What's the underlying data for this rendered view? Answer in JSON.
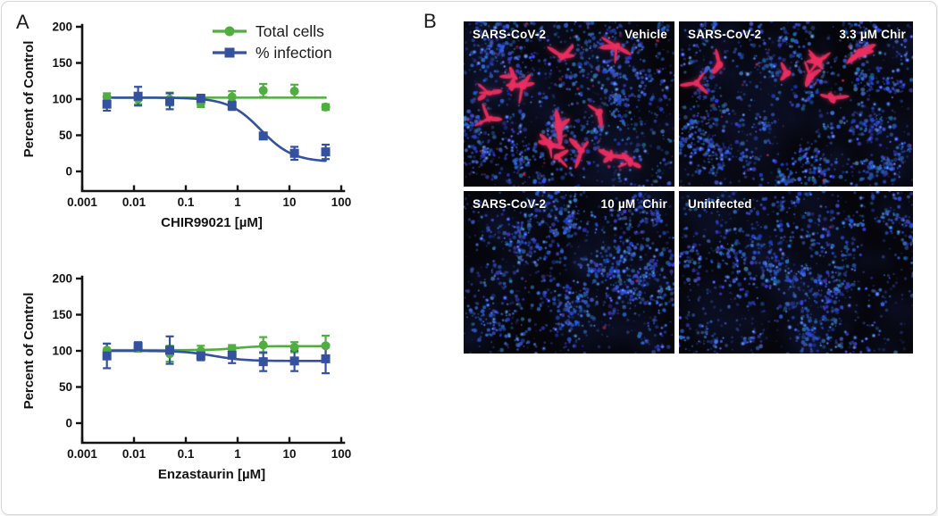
{
  "figure": {
    "panel_a_letter": "A",
    "panel_b_letter": "B"
  },
  "colors": {
    "total_cells_green": "#4fae3f",
    "infection_blue": "#34519f",
    "axis_black": "#131313",
    "micro_background": "#05050a",
    "nuclei_blue": "#3a5cc8",
    "infected_red": "#e8315e",
    "label_white": "#ffffff"
  },
  "chart_data": [
    {
      "type": "scatter",
      "title": "",
      "xlabel": "CHIR99021 [µM]",
      "ylabel": "Percent of Control",
      "x_scale": "log",
      "xlim": [
        0.001,
        100
      ],
      "ylim": [
        0,
        200
      ],
      "x_ticks": [
        "0.001",
        "0.01",
        "0.1",
        "1",
        "10",
        "100"
      ],
      "y_ticks": [
        0,
        50,
        100,
        150,
        200
      ],
      "grid": false,
      "legend_position": "top-right",
      "x": [
        0.003,
        0.012,
        0.049,
        0.195,
        0.78,
        3.125,
        12.5,
        50
      ],
      "series": [
        {
          "name": "Total cells",
          "marker": "circle",
          "color": "#4fae3f",
          "values": [
            103,
            100,
            100,
            94,
            103,
            112,
            111,
            89
          ],
          "errors": [
            5,
            7,
            9,
            5,
            8,
            9,
            9,
            4
          ],
          "fit": {
            "type": "flat",
            "value": 102
          }
        },
        {
          "name": "% infection",
          "marker": "square",
          "color": "#34519f",
          "values": [
            93,
            104,
            97,
            101,
            91,
            49,
            25,
            27
          ],
          "errors": [
            9,
            13,
            11,
            5,
            6,
            4,
            9,
            10
          ],
          "fit": {
            "type": "logistic",
            "top": 102,
            "bottom": 13,
            "ec50": 2.8,
            "hill": 1.4
          }
        }
      ]
    },
    {
      "type": "scatter",
      "title": "",
      "xlabel": "Enzastaurin [µM]",
      "ylabel": "Percent of Control",
      "x_scale": "log",
      "xlim": [
        0.001,
        100
      ],
      "ylim": [
        0,
        200
      ],
      "x_ticks": [
        "0.001",
        "0.01",
        "0.1",
        "1",
        "10",
        "100"
      ],
      "y_ticks": [
        0,
        50,
        100,
        150,
        200
      ],
      "grid": false,
      "legend_position": "none",
      "x": [
        0.003,
        0.012,
        0.049,
        0.195,
        0.78,
        3.125,
        12.5,
        50
      ],
      "series": [
        {
          "name": "Total cells",
          "marker": "circle",
          "color": "#4fae3f",
          "values": [
            101,
            105,
            96,
            100,
            103,
            108,
            105,
            107
          ],
          "errors": [
            9,
            6,
            11,
            7,
            5,
            11,
            7,
            14
          ],
          "fit": {
            "type": "logistic",
            "top": 101,
            "bottom": 106.5,
            "ec50": 0.9,
            "hill": 2
          }
        },
        {
          "name": "% infection",
          "marker": "square",
          "color": "#34519f",
          "values": [
            93,
            106,
            101,
            93,
            94,
            85,
            86,
            89
          ],
          "errors": [
            17,
            6,
            19,
            6,
            11,
            13,
            14,
            20
          ],
          "fit": {
            "type": "logistic",
            "top": 100,
            "bottom": 86,
            "ec50": 0.35,
            "hill": 1.5
          }
        }
      ]
    }
  ],
  "panel_b": {
    "images": [
      {
        "label_left": "SARS-CoV-2",
        "label_right": "Vehicle",
        "infected_cells": 14,
        "red_specks": 28
      },
      {
        "label_left": "SARS-CoV-2",
        "label_right": "3.3 µM Chir",
        "infected_cells": 8,
        "red_specks": 16
      },
      {
        "label_left": "SARS-CoV-2",
        "label_right": "10 µM  Chir",
        "infected_cells": 0,
        "red_specks": 3
      },
      {
        "label_left": "Uninfected",
        "label_right": "",
        "infected_cells": 0,
        "red_specks": 1
      }
    ]
  }
}
